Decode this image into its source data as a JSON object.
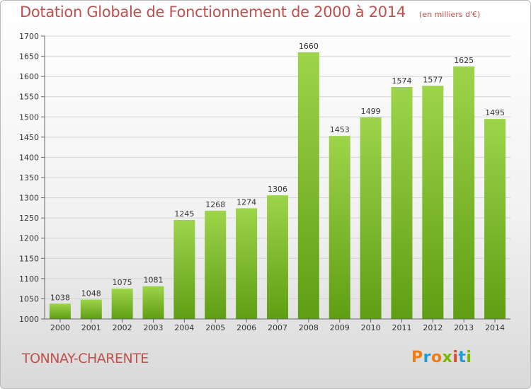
{
  "header": {
    "title": "Dotation Globale de Fonctionnement de 2000 à 2014",
    "unit": "(en milliers d'€)"
  },
  "footer": {
    "place": "TONNAY-CHARENTE",
    "logo_text": "Proxiti"
  },
  "colors": {
    "title": "#c0504d",
    "bar_top": "#9dd44a",
    "bar_bottom": "#5f9e14",
    "logo_letters": [
      "#f07d12",
      "#1d9fd6",
      "#f07d12",
      "#7ab800",
      "#e8432b",
      "#1d9fd6",
      "#7ab800"
    ]
  },
  "chart_data": {
    "type": "bar",
    "categories": [
      "2000",
      "2001",
      "2002",
      "2003",
      "2004",
      "2005",
      "2006",
      "2007",
      "2008",
      "2009",
      "2010",
      "2011",
      "2012",
      "2013",
      "2014"
    ],
    "values": [
      1038,
      1048,
      1075,
      1081,
      1245,
      1268,
      1274,
      1306,
      1660,
      1453,
      1499,
      1574,
      1577,
      1625,
      1495
    ],
    "ylim": [
      1000,
      1700
    ],
    "yticks": [
      1000,
      1050,
      1100,
      1150,
      1200,
      1250,
      1300,
      1350,
      1400,
      1450,
      1500,
      1550,
      1600,
      1650,
      1700
    ],
    "grid": true,
    "xlabel": "",
    "ylabel": ""
  }
}
